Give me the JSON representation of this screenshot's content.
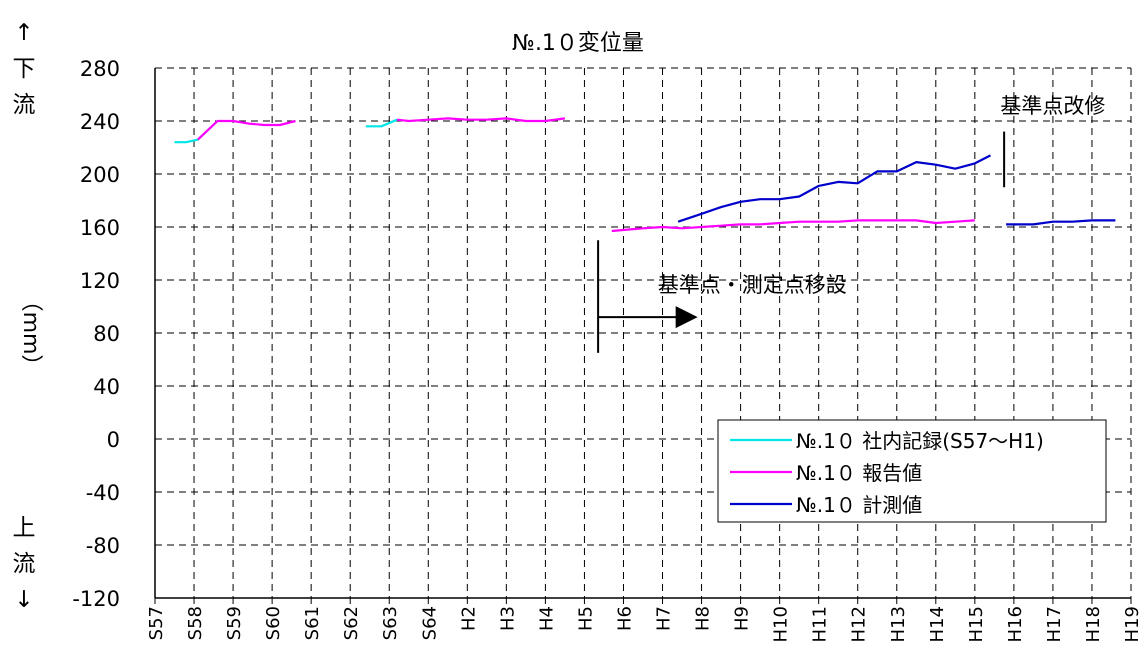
{
  "chart_data": {
    "type": "line",
    "title": "№.1０変位量",
    "ylabel": "（mm）",
    "y_top_label": [
      "↑",
      "下",
      "流"
    ],
    "y_bottom_label": [
      "上",
      "流",
      "↓"
    ],
    "ylim": [
      -120,
      280
    ],
    "yticks": [
      280,
      240,
      200,
      160,
      120,
      80,
      40,
      0,
      -40,
      -80,
      -120
    ],
    "categories": [
      "S57",
      "S58",
      "S59",
      "S60",
      "S61",
      "S62",
      "S63",
      "S64",
      "H2",
      "H3",
      "H4",
      "H5",
      "H6",
      "H7",
      "H8",
      "H9",
      "H10",
      "H11",
      "H12",
      "H13",
      "H14",
      "H15",
      "H16",
      "H17",
      "H18",
      "H19"
    ],
    "grid": true,
    "legend_position": "lower-right",
    "series": [
      {
        "name": "№.1０ 社内記録(S57～H1)",
        "color": "#00e5e5",
        "segments": [
          [
            [
              0.5,
              224
            ],
            [
              0.8,
              224
            ],
            [
              1.1,
              226
            ],
            [
              1.6,
              240
            ]
          ],
          [
            [
              5.4,
              236
            ],
            [
              5.8,
              236
            ],
            [
              6.2,
              241
            ]
          ]
        ]
      },
      {
        "name": "№.1０ 報告値",
        "color": "#ff00ff",
        "segments": [
          [
            [
              1.1,
              226
            ],
            [
              1.6,
              240
            ],
            [
              2.0,
              240
            ],
            [
              2.4,
              238
            ],
            [
              2.8,
              237
            ],
            [
              3.2,
              237
            ],
            [
              3.6,
              240
            ]
          ],
          [
            [
              6.2,
              241
            ],
            [
              6.5,
              240
            ],
            [
              7.0,
              241
            ],
            [
              7.5,
              242
            ],
            [
              8.0,
              241
            ],
            [
              8.5,
              241
            ],
            [
              9.0,
              242
            ],
            [
              9.5,
              240
            ],
            [
              10.0,
              240
            ],
            [
              10.5,
              242
            ]
          ],
          [
            [
              11.7,
              157
            ],
            [
              12.1,
              158
            ],
            [
              12.5,
              159
            ],
            [
              13.0,
              160
            ],
            [
              13.5,
              159
            ],
            [
              14.0,
              160
            ],
            [
              14.5,
              161
            ],
            [
              15.0,
              162
            ],
            [
              15.5,
              162
            ],
            [
              16.0,
              163
            ],
            [
              16.5,
              164
            ],
            [
              17.0,
              164
            ],
            [
              17.5,
              164
            ],
            [
              18.0,
              165
            ],
            [
              18.5,
              165
            ],
            [
              19.0,
              165
            ],
            [
              19.5,
              165
            ],
            [
              20.0,
              163
            ],
            [
              20.5,
              164
            ],
            [
              21.0,
              165
            ]
          ]
        ]
      },
      {
        "name": "№.1０ 計測値",
        "color": "#0000cc",
        "segments": [
          [
            [
              13.4,
              164
            ],
            [
              14.0,
              170
            ],
            [
              14.5,
              175
            ],
            [
              15.0,
              179
            ],
            [
              15.5,
              181
            ],
            [
              16.0,
              181
            ],
            [
              16.5,
              183
            ],
            [
              17.0,
              191
            ],
            [
              17.5,
              194
            ],
            [
              18.0,
              193
            ],
            [
              18.5,
              202
            ],
            [
              19.0,
              202
            ],
            [
              19.5,
              209
            ],
            [
              20.0,
              207
            ],
            [
              20.5,
              204
            ],
            [
              21.0,
              208
            ],
            [
              21.4,
              214
            ]
          ],
          [
            [
              21.8,
              162
            ],
            [
              22.5,
              162
            ],
            [
              23.0,
              164
            ],
            [
              23.5,
              164
            ],
            [
              24.0,
              165
            ],
            [
              24.6,
              165
            ]
          ]
        ]
      }
    ],
    "annotations": [
      {
        "text": "基準点・測定点移設",
        "x": 15.3,
        "y": 120,
        "arrow_from": [
          11.35,
          92
        ],
        "arrow_to": [
          13.9,
          92
        ],
        "vline": [
          11.35,
          150,
          65
        ]
      },
      {
        "text": "基準点改修",
        "x": 23.0,
        "y": 255,
        "vline": [
          21.75,
          232,
          190
        ]
      }
    ]
  }
}
